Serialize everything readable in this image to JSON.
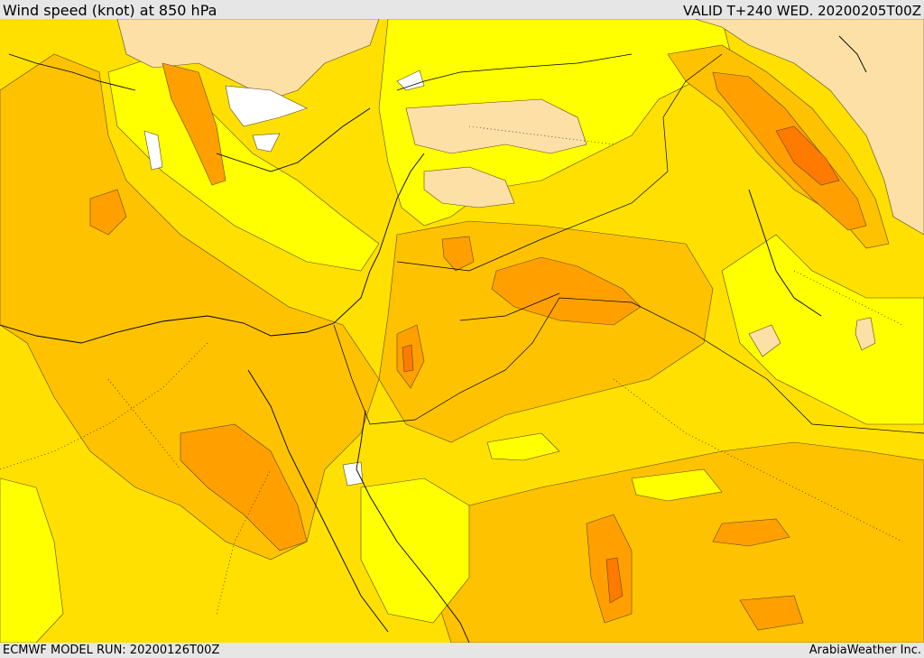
{
  "header": {
    "title": "Wind speed (knot) at 850 hPa",
    "valid": "VALID T+240 WED. 20200205T00Z"
  },
  "footer": {
    "model_run": "ECMWF MODEL RUN: 20200126T00Z",
    "credit": "ArabiaWeather Inc."
  },
  "map": {
    "colors": {
      "white_band": "#ffffff",
      "light_band": "#fde0a6",
      "yellow_band": "#ffff00",
      "gold_band": "#ffe000",
      "amber_band": "#ffc200",
      "orange_band": "#ffa000",
      "deep_orange_band": "#ff7a00",
      "red_orange_band": "#f55a00",
      "contour": "#5a4a20",
      "coast": "#000000"
    }
  }
}
